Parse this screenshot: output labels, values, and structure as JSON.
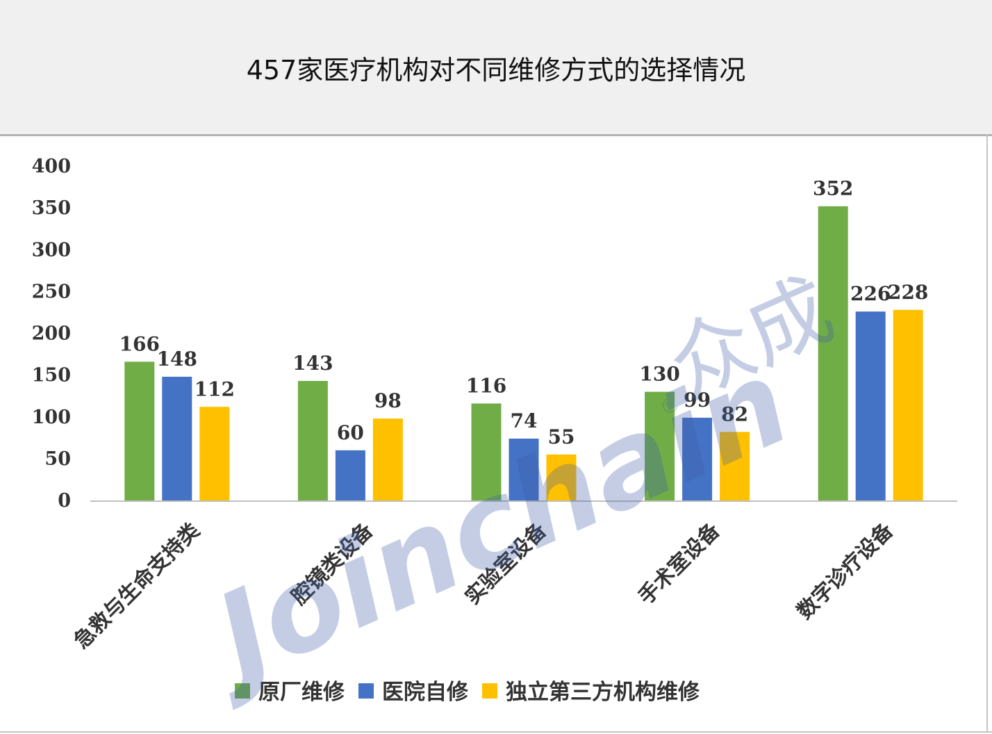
{
  "page": {
    "title": "457家医疗机构对不同维修方式的选择情况",
    "watermark": {
      "latin": "Joinchain",
      "cn": "众成",
      "reg": "®"
    }
  },
  "chart_data": {
    "type": "bar",
    "title": "457家医疗机构对不同维修方式的选择情况",
    "categories": [
      "急救与生命支持类",
      "腔镜类设备",
      "实验室设备",
      "手术室设备",
      "数字诊疗设备"
    ],
    "series": [
      {
        "name": "原厂维修",
        "color": "#70ad47",
        "values": [
          166,
          143,
          116,
          130,
          352
        ]
      },
      {
        "name": "医院自修",
        "color": "#4472c4",
        "values": [
          148,
          60,
          74,
          99,
          226
        ]
      },
      {
        "name": "独立第三方机构维修",
        "color": "#ffc000",
        "values": [
          112,
          98,
          55,
          82,
          228
        ]
      }
    ],
    "yticks": [
      "0",
      "50",
      "100",
      "150",
      "200",
      "250",
      "300",
      "350",
      "400"
    ],
    "ylim": [
      0,
      400
    ],
    "grid": false,
    "legend_position": "bottom"
  }
}
